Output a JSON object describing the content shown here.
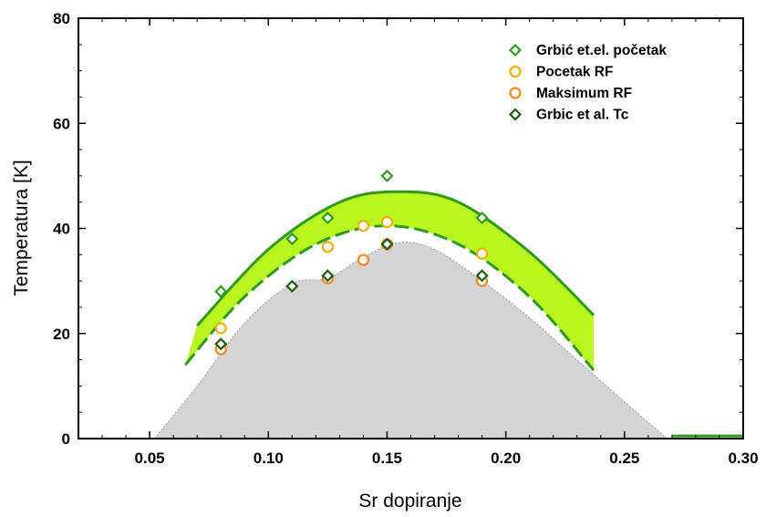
{
  "chart_data": {
    "type": "scatter",
    "xlabel": "Sr dopiranje",
    "ylabel": "Temperatura [K]",
    "xlim": [
      0.02,
      0.3
    ],
    "ylim": [
      0,
      80
    ],
    "x_ticks": [
      "0.05",
      "0.10",
      "0.15",
      "0.20",
      "0.25",
      "0.30"
    ],
    "y_ticks": [
      "0",
      "20",
      "40",
      "60",
      "80"
    ],
    "x_tick_values": [
      0.05,
      0.1,
      0.15,
      0.2,
      0.25,
      0.3
    ],
    "y_tick_values": [
      0,
      20,
      40,
      60,
      80
    ],
    "grid": false,
    "legend_position": "top-right",
    "colors": {
      "green": "#2e9a1e",
      "dark_green": "#1e5a0e",
      "orange": "#ff9900",
      "band_fill": "#b9f51f",
      "gray_fill": "#d4d4d4"
    },
    "series": [
      {
        "name": "Grbić et.el. početak",
        "marker": "diamond",
        "color": "#2e9a1e",
        "points": [
          [
            0.08,
            28
          ],
          [
            0.11,
            38
          ],
          [
            0.125,
            42
          ],
          [
            0.15,
            50
          ],
          [
            0.19,
            42
          ]
        ]
      },
      {
        "name": "Pocetak RF",
        "marker": "circle",
        "color": "#f0b000",
        "points": [
          [
            0.08,
            21
          ],
          [
            0.125,
            36.5
          ],
          [
            0.14,
            40.5
          ],
          [
            0.15,
            41.2
          ],
          [
            0.19,
            35.2
          ]
        ]
      },
      {
        "name": "Maksimum RF",
        "marker": "circle",
        "color": "#f08a1a",
        "points": [
          [
            0.08,
            17
          ],
          [
            0.125,
            30.5
          ],
          [
            0.14,
            34
          ],
          [
            0.15,
            37
          ],
          [
            0.19,
            30
          ]
        ]
      },
      {
        "name": "Grbic et al. Tc",
        "marker": "diamond",
        "color": "#1e5a0e",
        "points": [
          [
            0.08,
            18
          ],
          [
            0.11,
            29
          ],
          [
            0.125,
            31
          ],
          [
            0.15,
            37
          ],
          [
            0.19,
            31
          ]
        ],
        "error": 1
      }
    ],
    "curves": {
      "upper": {
        "style": "solid",
        "color": "#2e9a1e",
        "points": [
          [
            0.07,
            21.5
          ],
          [
            0.1,
            36
          ],
          [
            0.13,
            45
          ],
          [
            0.155,
            47
          ],
          [
            0.18,
            45
          ],
          [
            0.21,
            35.5
          ],
          [
            0.237,
            23.5
          ]
        ]
      },
      "lower": {
        "style": "dashed",
        "color": "#2e9a1e",
        "points": [
          [
            0.065,
            14
          ],
          [
            0.09,
            27
          ],
          [
            0.12,
            37
          ],
          [
            0.15,
            40.5
          ],
          [
            0.18,
            37
          ],
          [
            0.21,
            27
          ],
          [
            0.237,
            13
          ]
        ]
      },
      "baseline": {
        "style": "solid",
        "color": "#2e9a1e",
        "points": [
          [
            0.27,
            0.5
          ],
          [
            0.3,
            0.5
          ]
        ]
      },
      "gray_region": [
        [
          0.052,
          0
        ],
        [
          0.07,
          10
        ],
        [
          0.09,
          22
        ],
        [
          0.11,
          29.5
        ],
        [
          0.125,
          30.5
        ],
        [
          0.14,
          34.5
        ],
        [
          0.155,
          37.3
        ],
        [
          0.17,
          36
        ],
        [
          0.19,
          30
        ],
        [
          0.21,
          23
        ],
        [
          0.23,
          15
        ],
        [
          0.25,
          7
        ],
        [
          0.268,
          0
        ]
      ]
    }
  }
}
